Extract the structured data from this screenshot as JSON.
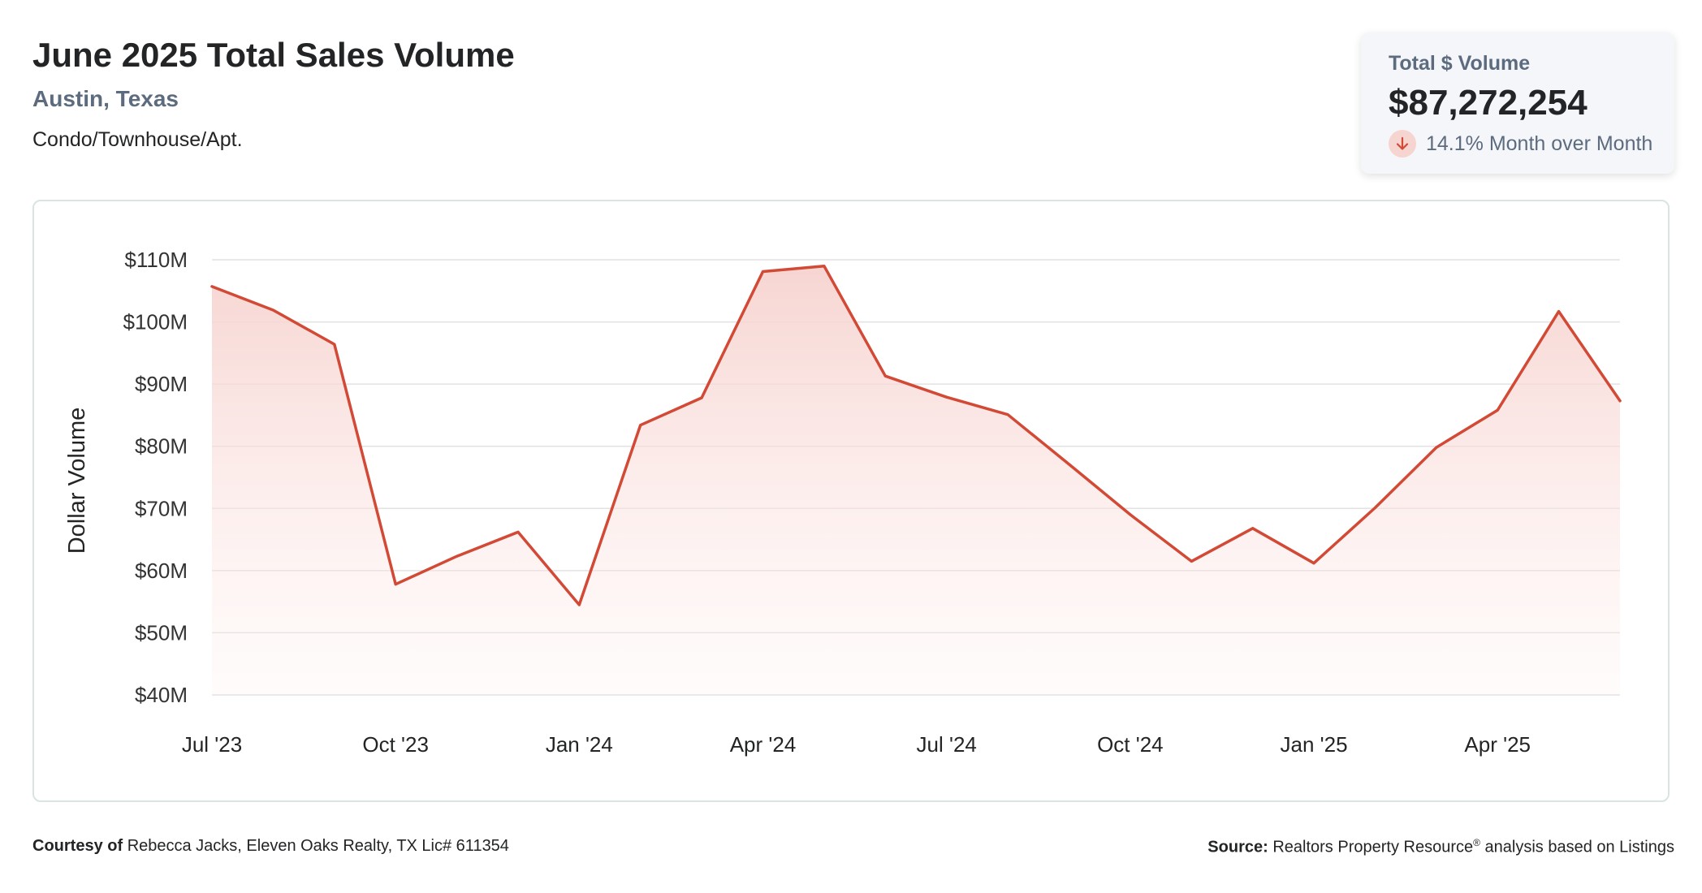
{
  "header": {
    "title": "June 2025 Total Sales Volume",
    "location": "Austin, Texas",
    "property_type": "Condo/Townhouse/Apt."
  },
  "summary": {
    "label": "Total $ Volume",
    "value": "$87,272,254",
    "change_text": "14.1% Month over Month",
    "direction": "down"
  },
  "colors": {
    "line": "#d24a36",
    "fill_top": "#f6d3cf",
    "grid": "#e2e2e2",
    "title": "#222426",
    "subtitle": "#5d6b7f"
  },
  "chart_data": {
    "type": "area",
    "title": "June 2025 Total Sales Volume",
    "ylabel": "Dollar Volume",
    "xlabel": "",
    "ylim": [
      40,
      110
    ],
    "yunit": "$M",
    "yticks": [
      110,
      100,
      90,
      80,
      70,
      60,
      50,
      40
    ],
    "ytick_labels": [
      "$110M",
      "$100M",
      "$90M",
      "$80M",
      "$70M",
      "$60M",
      "$50M",
      "$40M"
    ],
    "xtick_labels": [
      "Jul '23",
      "Oct '23",
      "Jan '24",
      "Apr '24",
      "Jul '24",
      "Oct '24",
      "Jan '25",
      "Apr '25"
    ],
    "xtick_indices": [
      0,
      3,
      6,
      9,
      12,
      15,
      18,
      21
    ],
    "categories": [
      "Jul 2023",
      "Aug 2023",
      "Sep 2023",
      "Oct 2023",
      "Nov 2023",
      "Dec 2023",
      "Jan 2024",
      "Feb 2024",
      "Mar 2024",
      "Apr 2024",
      "May 2024",
      "Jun 2024",
      "Jul 2024",
      "Aug 2024",
      "Sep 2024",
      "Oct 2024",
      "Nov 2024",
      "Dec 2024",
      "Jan 2025",
      "Feb 2025",
      "Mar 2025",
      "Apr 2025",
      "May 2025",
      "Jun 2025"
    ],
    "series": [
      {
        "name": "Total $ Volume",
        "values": [
          105.7,
          101.9,
          96.4,
          57.8,
          62.3,
          66.2,
          54.5,
          83.4,
          87.8,
          108.1,
          109.0,
          91.3,
          87.9,
          85.1,
          77.1,
          69.0,
          61.5,
          66.8,
          61.2,
          70.1,
          79.8,
          85.8,
          101.7,
          87.3
        ]
      }
    ]
  },
  "footer": {
    "courtesy_label": "Courtesy of",
    "courtesy_text": "Rebecca Jacks, Eleven Oaks Realty, TX Lic# 611354",
    "source_label": "Source:",
    "source_text": "Realtors Property Resource",
    "source_mark": "®",
    "source_suffix": "analysis based on Listings"
  }
}
